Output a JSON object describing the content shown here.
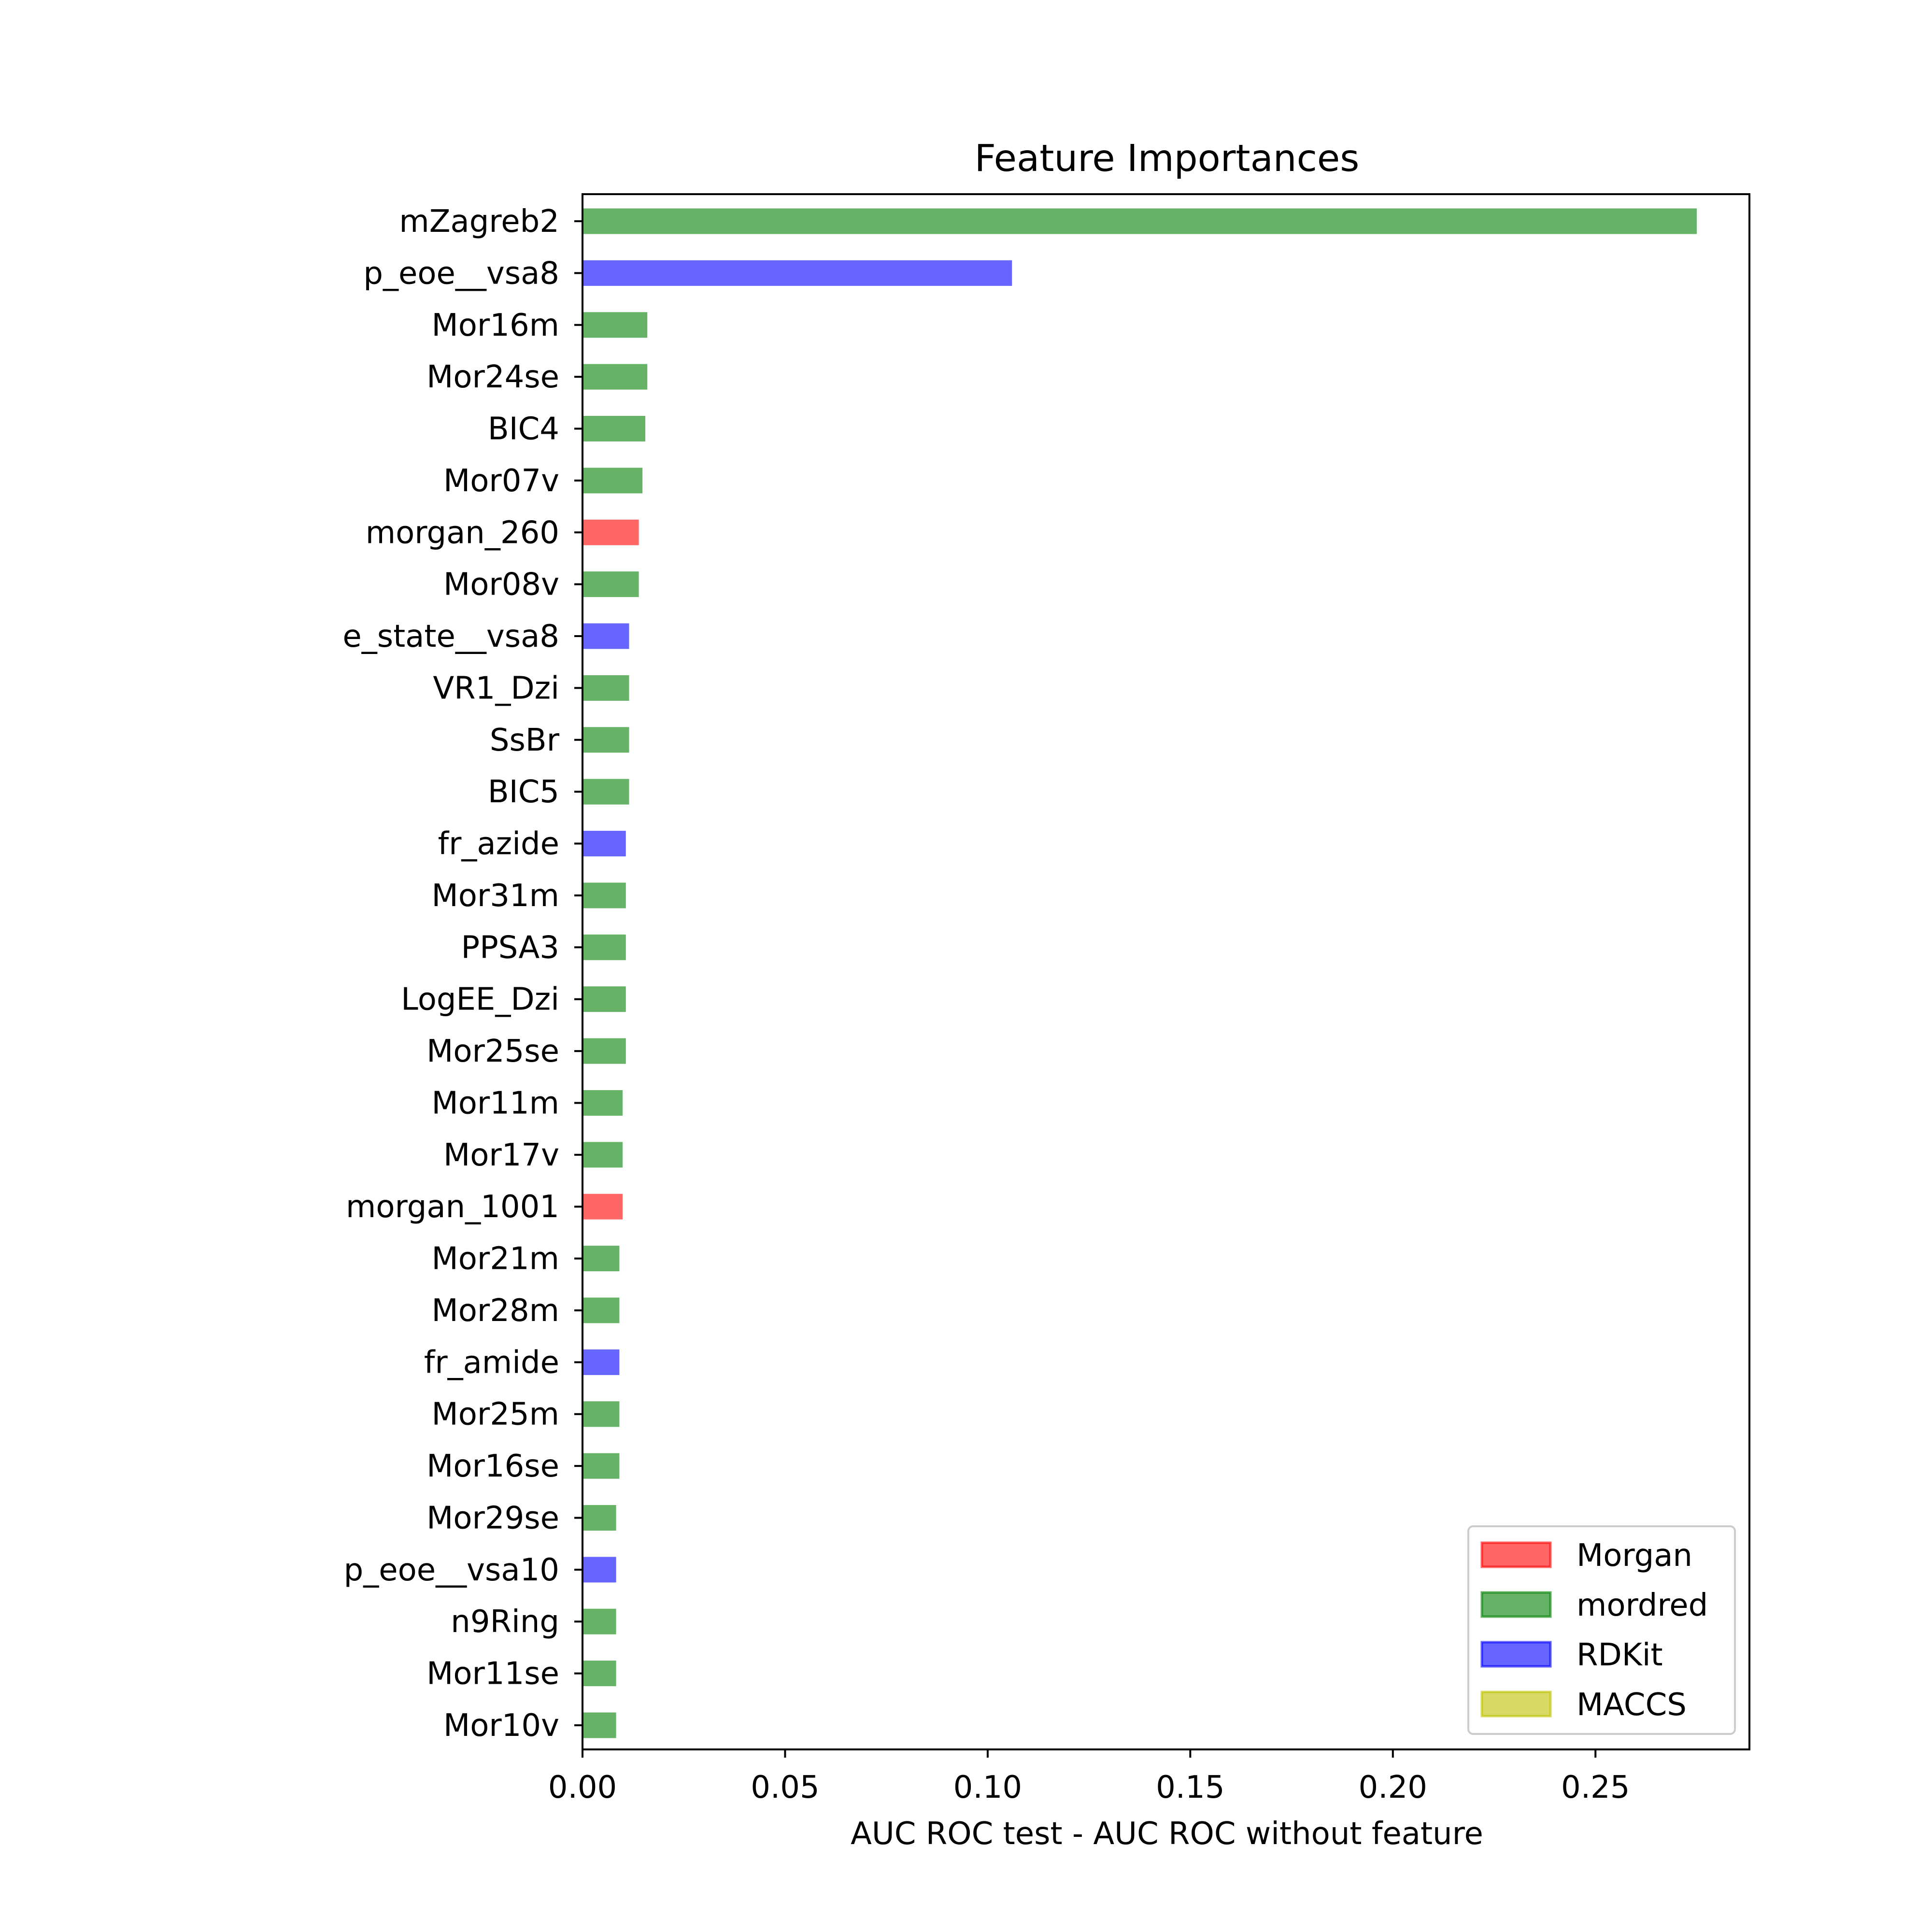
{
  "chart_data": {
    "type": "bar",
    "orientation": "horizontal",
    "title": "Feature Importances",
    "xlabel": "AUC ROC test - AUC ROC without feature",
    "ylabel": "",
    "xlim": [
      0,
      0.288
    ],
    "x_ticks": [
      "0.00",
      "0.05",
      "0.10",
      "0.15",
      "0.20",
      "0.25"
    ],
    "x_tick_values": [
      0,
      0.05,
      0.1,
      0.15,
      0.2,
      0.25
    ],
    "grid": false,
    "legend_position": "lower-right",
    "categories": [
      "mZagreb2",
      "p_eoe__vsa8",
      "Mor16m",
      "Mor24se",
      "BIC4",
      "Mor07v",
      "morgan_260",
      "Mor08v",
      "e_state__vsa8",
      "VR1_Dzi",
      "SsBr",
      "BIC5",
      "fr_azide",
      "Mor31m",
      "PPSA3",
      "LogEE_Dzi",
      "Mor25se",
      "Mor11m",
      "Mor17v",
      "morgan_1001",
      "Mor21m",
      "Mor28m",
      "fr_amide",
      "Mor25m",
      "Mor16se",
      "Mor29se",
      "p_eoe__vsa10",
      "n9Ring",
      "Mor11se",
      "Mor10v"
    ],
    "values": [
      0.275,
      0.106,
      0.016,
      0.016,
      0.0155,
      0.0148,
      0.0139,
      0.0139,
      0.0115,
      0.0115,
      0.0115,
      0.0115,
      0.0107,
      0.0107,
      0.0107,
      0.0107,
      0.0107,
      0.0099,
      0.0099,
      0.0099,
      0.0091,
      0.0091,
      0.0091,
      0.0091,
      0.0091,
      0.0083,
      0.0083,
      0.0083,
      0.0083,
      0.0083
    ],
    "groups": [
      "mordred",
      "RDKit",
      "mordred",
      "mordred",
      "mordred",
      "mordred",
      "Morgan",
      "mordred",
      "RDKit",
      "mordred",
      "mordred",
      "mordred",
      "RDKit",
      "mordred",
      "mordred",
      "mordred",
      "mordred",
      "mordred",
      "mordred",
      "Morgan",
      "mordred",
      "mordred",
      "RDKit",
      "mordred",
      "mordred",
      "mordred",
      "RDKit",
      "mordred",
      "mordred",
      "mordred"
    ],
    "legend": [
      {
        "name": "Morgan",
        "color": "#ff6666",
        "edge": "#ff0000"
      },
      {
        "name": "mordred",
        "color": "#66b266",
        "edge": "#008000"
      },
      {
        "name": "RDKit",
        "color": "#6666ff",
        "edge": "#0000ff"
      },
      {
        "name": "MACCS",
        "color": "#d9d966",
        "edge": "#bfbf00"
      }
    ]
  }
}
